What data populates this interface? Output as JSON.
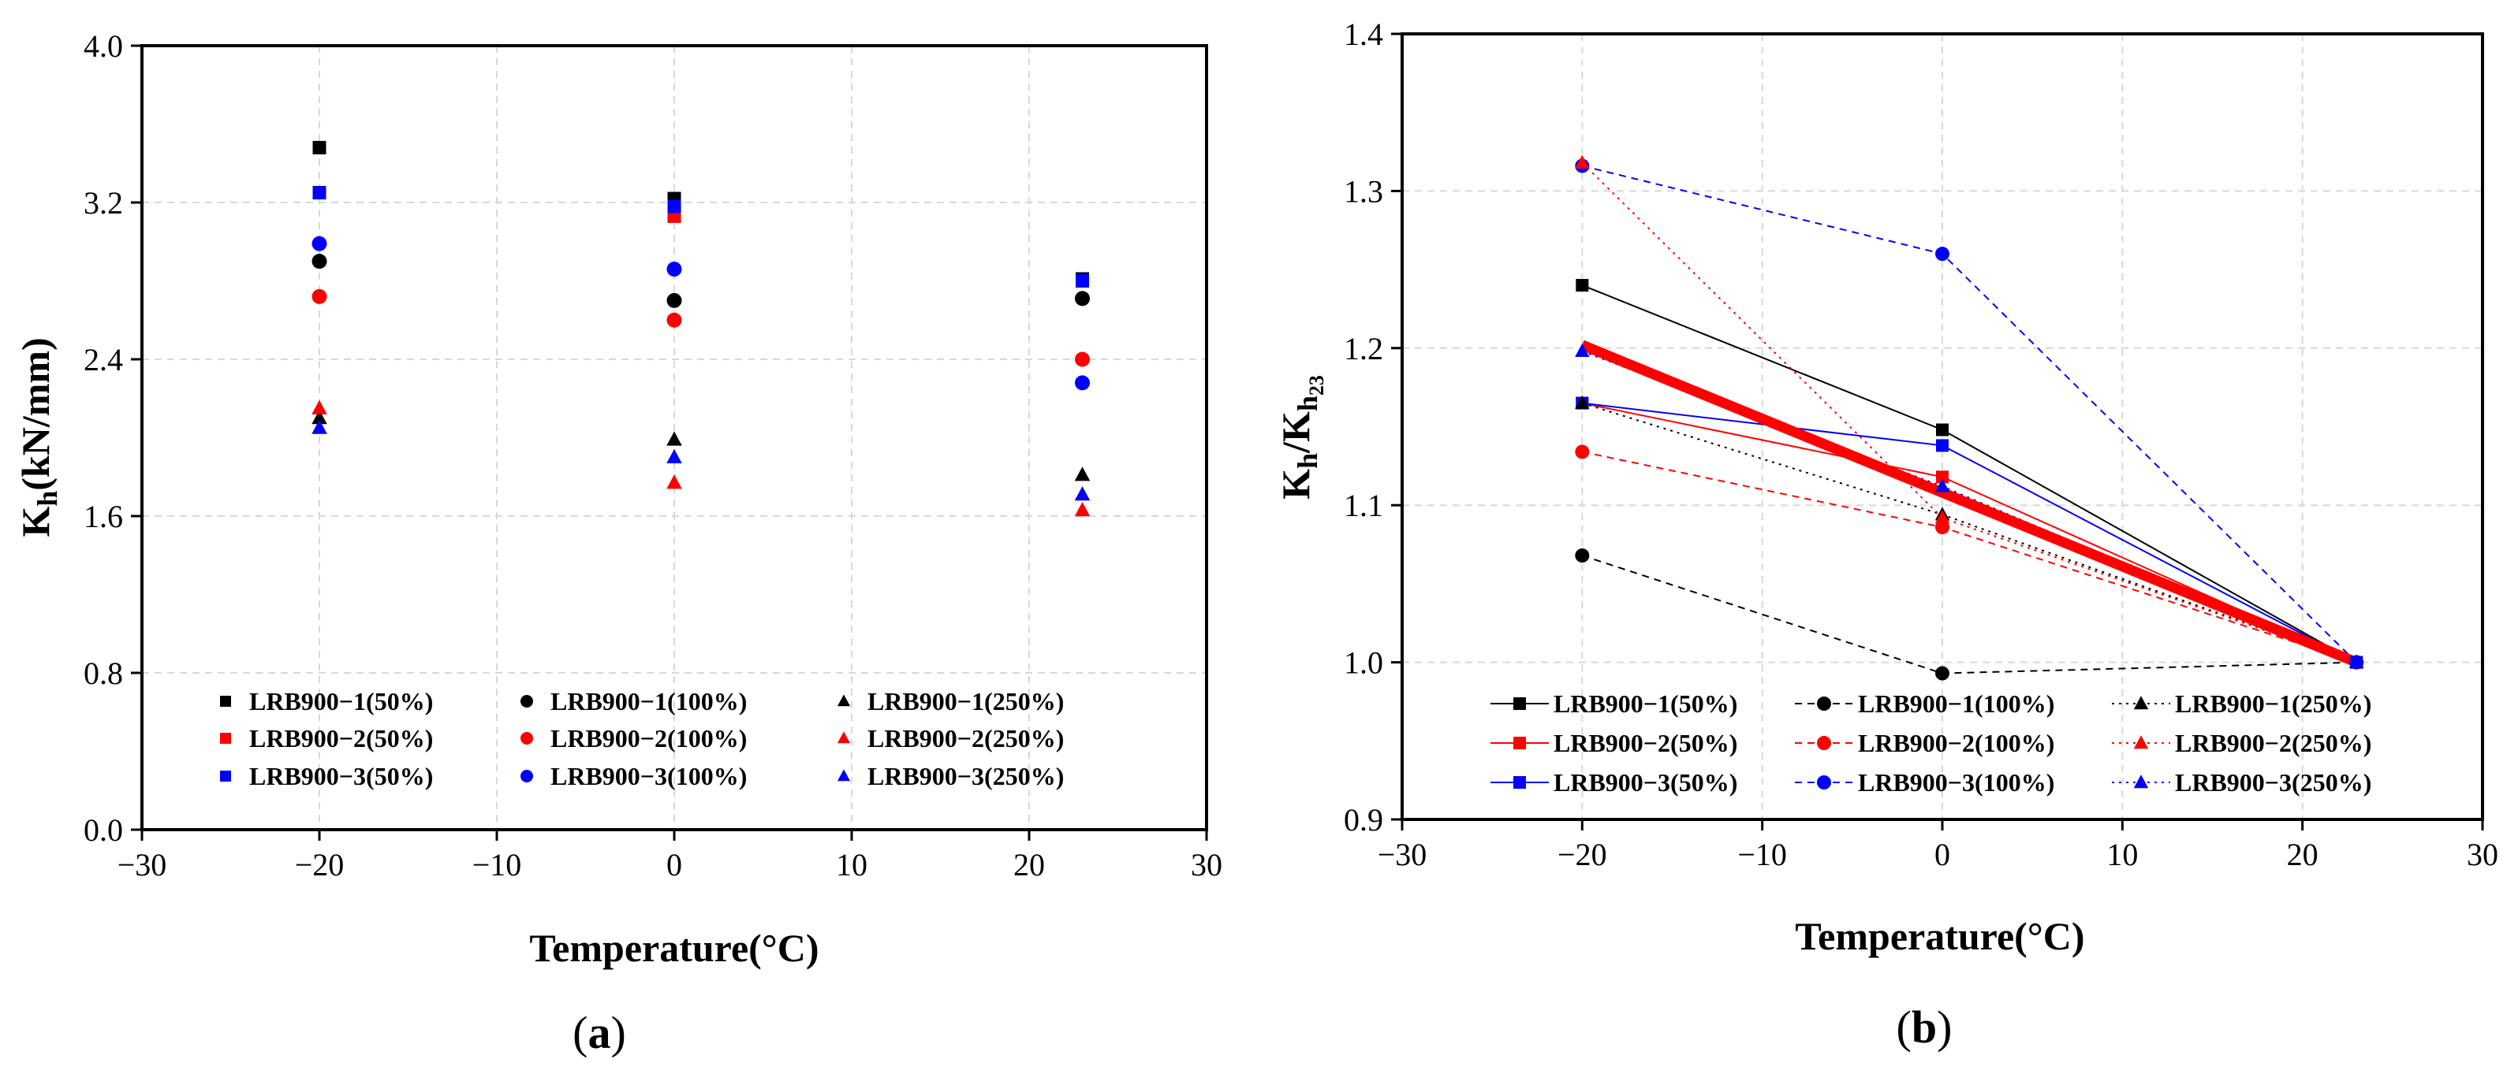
{
  "chart_data": [
    {
      "panel": "a",
      "type": "scatter",
      "panel_label": "(a)",
      "xlabel": "Temperature(°C)",
      "ylabel": "Kh(kN/mm)",
      "xlim": [
        -30,
        30
      ],
      "ylim": [
        0,
        4.0
      ],
      "xticks": [
        -30,
        -20,
        -10,
        0,
        10,
        20,
        30
      ],
      "xtick_labels": [
        "−30",
        "−20",
        "−10",
        "0",
        "10",
        "20",
        "30"
      ],
      "yticks": [
        0,
        0.8,
        1.6,
        2.4,
        3.2,
        4.0
      ],
      "ytick_labels": [
        "0.0",
        "0.8",
        "1.6",
        "2.4",
        "3.2",
        "4.0"
      ],
      "grid": true,
      "legend_position": "bottom-center",
      "x": [
        -20,
        0,
        23
      ],
      "series": [
        {
          "name": "LRB900−1(50%)",
          "color": "#000000",
          "marker": "square",
          "values": [
            3.48,
            3.22,
            2.81
          ]
        },
        {
          "name": "LRB900−2(50%)",
          "color": "#ff0000",
          "marker": "square",
          "values": [
            3.25,
            3.13,
            2.8
          ]
        },
        {
          "name": "LRB900−3(50%)",
          "color": "#0000ff",
          "marker": "square",
          "values": [
            3.25,
            3.18,
            2.8
          ]
        },
        {
          "name": "LRB900−1(100%)",
          "color": "#000000",
          "marker": "circle",
          "values": [
            2.9,
            2.7,
            2.71
          ]
        },
        {
          "name": "LRB900−2(100%)",
          "color": "#ff0000",
          "marker": "circle",
          "values": [
            2.72,
            2.6,
            2.4
          ]
        },
        {
          "name": "LRB900−3(100%)",
          "color": "#0000ff",
          "marker": "circle",
          "values": [
            2.99,
            2.86,
            2.28
          ]
        },
        {
          "name": "LRB900−1(250%)",
          "color": "#000000",
          "marker": "triangle",
          "values": [
            2.1,
            1.99,
            1.81
          ]
        },
        {
          "name": "LRB900−2(250%)",
          "color": "#ff0000",
          "marker": "triangle",
          "values": [
            2.15,
            1.77,
            1.63
          ]
        },
        {
          "name": "LRB900−3(250%)",
          "color": "#0000ff",
          "marker": "triangle",
          "values": [
            2.05,
            1.9,
            1.71
          ]
        }
      ]
    },
    {
      "panel": "b",
      "type": "line",
      "panel_label": "(b)",
      "xlabel": "Temperature(°C)",
      "ylabel": "Kh/Kh23",
      "xlim": [
        -30,
        30
      ],
      "ylim": [
        0.9,
        1.4
      ],
      "xticks": [
        -30,
        -20,
        -10,
        0,
        10,
        20,
        30
      ],
      "xtick_labels": [
        "−30",
        "−20",
        "−10",
        "0",
        "10",
        "20",
        "30"
      ],
      "yticks": [
        0.9,
        1.0,
        1.1,
        1.2,
        1.3,
        1.4
      ],
      "ytick_labels": [
        "0.9",
        "1.0",
        "1.1",
        "1.2",
        "1.3",
        "1.4"
      ],
      "grid": true,
      "legend_position": "bottom-center",
      "x": [
        -20,
        0,
        23
      ],
      "series": [
        {
          "name": "LRB900−1(50%)",
          "color": "#000000",
          "marker": "square",
          "line": "solid",
          "values": [
            1.24,
            1.148,
            1.0
          ]
        },
        {
          "name": "LRB900−2(50%)",
          "color": "#ff0000",
          "marker": "square",
          "line": "solid",
          "values": [
            1.165,
            1.118,
            1.0
          ]
        },
        {
          "name": "LRB900−3(50%)",
          "color": "#0000ff",
          "marker": "square",
          "line": "solid",
          "values": [
            1.165,
            1.138,
            1.0
          ]
        },
        {
          "name": "LRB900−1(100%)",
          "color": "#000000",
          "marker": "circle",
          "line": "dashed",
          "values": [
            1.068,
            0.993,
            1.0
          ]
        },
        {
          "name": "LRB900−2(100%)",
          "color": "#ff0000",
          "marker": "circle",
          "line": "dashed",
          "values": [
            1.134,
            1.086,
            1.0
          ]
        },
        {
          "name": "LRB900−3(100%)",
          "color": "#0000ff",
          "marker": "circle",
          "line": "dashed",
          "values": [
            1.316,
            1.26,
            1.0
          ]
        },
        {
          "name": "LRB900−1(250%)",
          "color": "#000000",
          "marker": "triangle",
          "line": "dotted",
          "values": [
            1.165,
            1.094,
            1.0
          ]
        },
        {
          "name": "LRB900−2(250%)",
          "color": "#ff0000",
          "marker": "triangle",
          "line": "dotted",
          "values": [
            1.318,
            1.092,
            1.0
          ]
        },
        {
          "name": "LRB900−3(250%)",
          "color": "#0000ff",
          "marker": "triangle",
          "line": "dotted",
          "values": [
            1.198,
            1.112,
            1.0
          ]
        }
      ],
      "trend_line": {
        "name": "average",
        "color": "#ff0000",
        "x": [
          -20,
          23
        ],
        "values": [
          1.202,
          1.0
        ]
      }
    }
  ]
}
